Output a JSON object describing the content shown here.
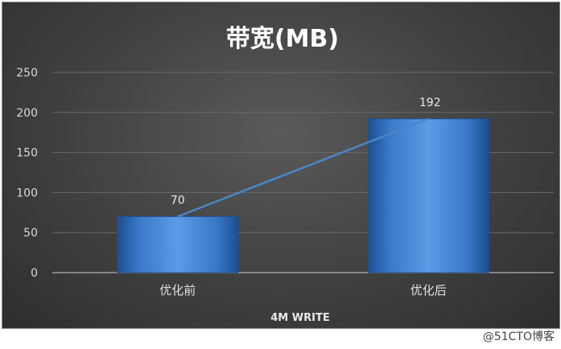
{
  "chart_data": {
    "type": "bar",
    "title": "带宽(MB)",
    "xlabel": "4M WRITE",
    "ylabel": "",
    "categories": [
      "优化前",
      "优化后"
    ],
    "values": [
      70,
      192
    ],
    "data_labels": [
      "70",
      "192"
    ],
    "ylim": [
      0,
      250
    ],
    "yticks": [
      0,
      50,
      100,
      150,
      200,
      250
    ],
    "ytick_labels": [
      "0",
      "50",
      "100",
      "150",
      "200",
      "250"
    ],
    "grid": true,
    "trendline": true,
    "colors": {
      "bar": "#3a78c9",
      "bar_light": "#5b9be6",
      "bar_dark": "#1d4f91",
      "trend_line": "#4a86c8",
      "grid": "#6a6a6a",
      "axis": "#a0a0a0",
      "background": "#3f3f3f"
    }
  },
  "watermark": "@51CTO博客"
}
